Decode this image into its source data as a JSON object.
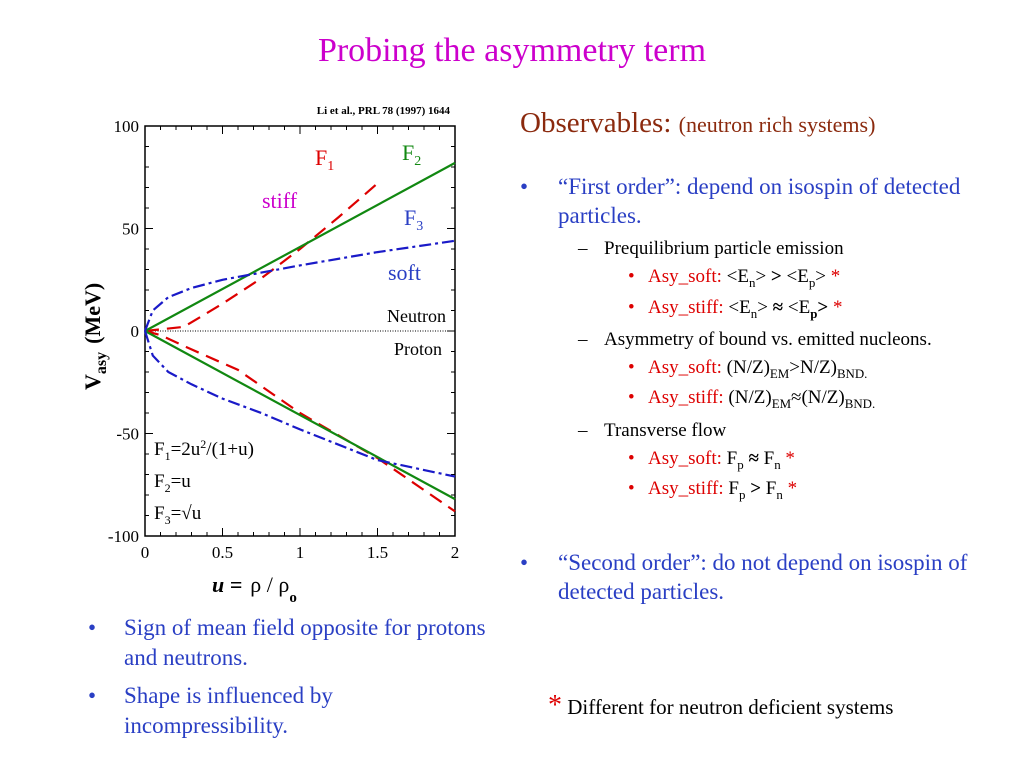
{
  "title": "Probing the asymmetry term",
  "citation": "Li et al., PRL 78 (1997) 1644",
  "observables": {
    "heading": "Observables:",
    "subheading": "(neutron rich systems)"
  },
  "chart_data": {
    "type": "line",
    "xlabel_u": "u =",
    "xlabel_rho": "ρ / ρ",
    "xlabel_rho_sub": "o",
    "ylabel_main": "V",
    "ylabel_sub": "asy",
    "ylabel_unit": "(MeV)",
    "xlim": [
      0,
      2
    ],
    "ylim": [
      -100,
      100
    ],
    "xticks": [
      0,
      0.5,
      1,
      1.5,
      2
    ],
    "xtick_labels": [
      "0",
      "0.5",
      "1",
      "1.5",
      "2"
    ],
    "yticks": [
      100,
      50,
      0,
      -50,
      -100
    ],
    "ytick_labels": [
      "100",
      "50",
      "0",
      "-50",
      "-100"
    ],
    "series": [
      {
        "name": "F1",
        "label_sub": "1",
        "style": "dashed",
        "color": "#dd0000",
        "neutron": {
          "x": [
            0,
            0.25,
            0.5,
            0.75,
            1.0,
            1.25,
            1.5
          ],
          "y": [
            0,
            2.0,
            13.3,
            25.7,
            40,
            55.6,
            72
          ]
        },
        "proton": {
          "x": [
            0,
            0.1,
            0.3,
            0.6,
            1.0,
            1.5,
            2.0
          ],
          "y": [
            0,
            -2,
            -9,
            -19,
            -40,
            -62,
            -88
          ]
        }
      },
      {
        "name": "F2",
        "label_sub": "2",
        "style": "solid",
        "color": "#118811",
        "neutron": {
          "x": [
            0,
            2.0
          ],
          "y": [
            0,
            82
          ]
        },
        "proton": {
          "x": [
            0,
            2.0
          ],
          "y": [
            0,
            -82
          ]
        }
      },
      {
        "name": "F3",
        "label_sub": "3",
        "style": "dashdot",
        "color": "#1a1ac8",
        "neutron": {
          "x": [
            0,
            0.05,
            0.15,
            0.3,
            0.5,
            0.75,
            1.0,
            1.5,
            2.0
          ],
          "y": [
            0,
            10,
            16.5,
            21,
            25,
            28.5,
            32,
            38.5,
            44
          ]
        },
        "proton": {
          "x": [
            0,
            0.05,
            0.15,
            0.3,
            0.5,
            0.75,
            1.0,
            1.5,
            2.0
          ],
          "y": [
            0,
            -12,
            -20,
            -26,
            -33,
            -40,
            -48,
            -63,
            -71
          ]
        }
      }
    ],
    "annotations": {
      "f1": "F",
      "f1_sub": "1",
      "f2": "F",
      "f2_sub": "2",
      "f3": "F",
      "f3_sub": "3",
      "stiff": "stiff",
      "soft": "soft",
      "neutron": "Neutron",
      "proton": "Proton",
      "formula1": "F₁=2u²/(1+u)",
      "formula2": "F₂=u",
      "formula3": "F₃=√u"
    }
  },
  "right_bullets": {
    "b1": "“First order”: depend on isospin of detected particles.",
    "pre": "Prequilibrium particle emission",
    "pre_soft_label": "Asy_soft:",
    "pre_soft_val": "<En> > <Ep>",
    "pre_stiff_label": "Asy_stiff:",
    "pre_stiff_val": "<En> ≈ <Ep>",
    "bound": "Asymmetry of bound vs. emitted nucleons.",
    "bound_soft_label": "Asy_soft:",
    "bound_soft_val": "(N/Z)EM>N/Z)BND.",
    "bound_stiff_label": "Asy_stiff:",
    "bound_stiff_val": "(N/Z)EM≈(N/Z)BND.",
    "flow": "Transverse flow",
    "flow_soft_label": "Asy_soft:",
    "flow_soft_val": "Fp ≈ Fn",
    "flow_stiff_label": "Asy_stiff:",
    "flow_stiff_val": "Fp > Fn",
    "b2": "“Second order”: do not depend on isospin  of detected particles.",
    "star": "*",
    "bullet": "•",
    "dash": "–"
  },
  "left_bullets": [
    "Sign of mean field opposite for protons and neutrons.",
    "Shape is influenced by incompressibility."
  ],
  "footnote": {
    "star": "*",
    "text": "Different for neutron deficient systems"
  }
}
